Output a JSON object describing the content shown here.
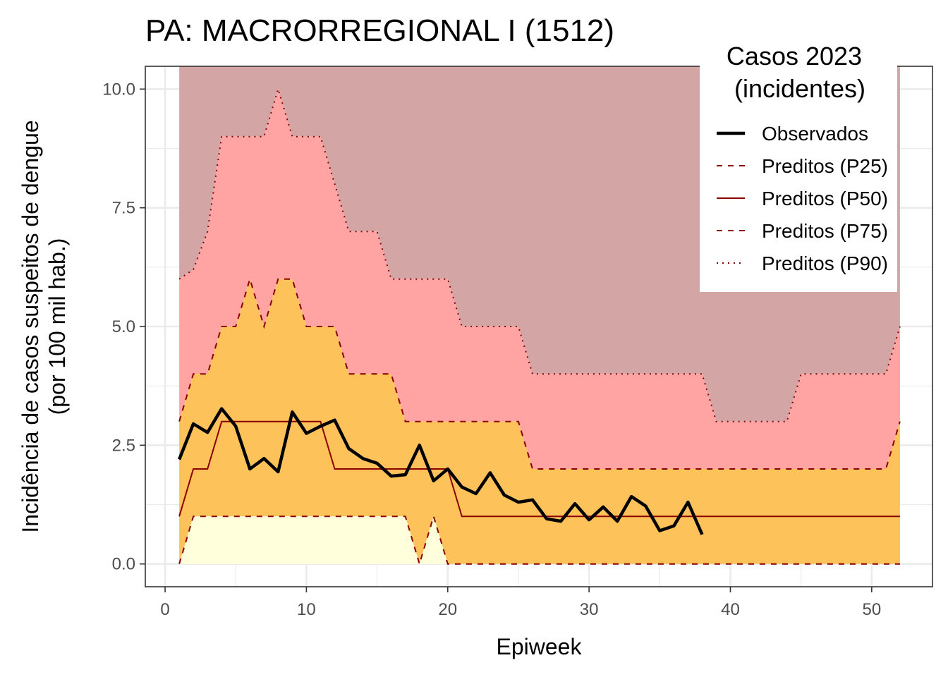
{
  "chart_data": {
    "type": "area",
    "title": "PA: MACRORREGIONAL I (1512)",
    "xlabel": "Epiweek",
    "ylabel_line1": "Incidência de casos suspeitos de dengue",
    "ylabel_line2": "(por 100 mil hab.)",
    "xlim": [
      -1.4,
      54.3
    ],
    "ylim": [
      -0.48,
      10.48
    ],
    "x_ticks": [
      0,
      10,
      20,
      30,
      40,
      50
    ],
    "x_tick_labels": [
      "0",
      "10",
      "20",
      "30",
      "40",
      "50"
    ],
    "y_ticks": [
      0,
      2.5,
      5,
      7.5,
      10
    ],
    "y_tick_labels": [
      "0.0",
      "2.5",
      "5.0",
      "7.5",
      "10.0"
    ],
    "grid": true,
    "legend_position": "top-right",
    "legend_title_line1": "Casos 2023",
    "legend_title_line2": "(incidentes)",
    "colors": {
      "band_top": "#d4a5a5",
      "band_p75_p90": "#ffa3a3",
      "band_p25_p75": "#fdc25a",
      "band_bottom": "#ffffdc",
      "predicted_line": "#8b0000",
      "observed_line": "#000000"
    },
    "x": [
      1,
      2,
      3,
      4,
      5,
      6,
      7,
      8,
      9,
      10,
      11,
      12,
      13,
      14,
      15,
      16,
      17,
      18,
      19,
      20,
      21,
      22,
      23,
      24,
      25,
      26,
      27,
      28,
      29,
      30,
      31,
      32,
      33,
      34,
      35,
      36,
      37,
      38,
      39,
      40,
      41,
      42,
      43,
      44,
      45,
      46,
      47,
      48,
      49,
      50,
      51,
      52
    ],
    "series": [
      {
        "name": "Observados",
        "x": [
          1,
          2,
          3,
          4,
          5,
          6,
          7,
          8,
          9,
          10,
          11,
          12,
          13,
          14,
          15,
          16,
          17,
          18,
          19,
          20,
          21,
          22,
          23,
          24,
          25,
          26,
          27,
          28,
          29,
          30,
          31,
          32,
          33,
          34,
          35,
          36,
          37,
          38
        ],
        "values": [
          2.2,
          2.95,
          2.77,
          3.27,
          2.9,
          2.0,
          2.22,
          1.94,
          3.2,
          2.75,
          2.9,
          3.03,
          2.43,
          2.22,
          2.12,
          1.85,
          1.88,
          2.5,
          1.75,
          2.0,
          1.62,
          1.48,
          1.92,
          1.45,
          1.3,
          1.35,
          0.95,
          0.9,
          1.27,
          0.93,
          1.2,
          0.9,
          1.42,
          1.22,
          0.7,
          0.8,
          1.3,
          0.62
        ]
      },
      {
        "name": "Preditos (P25)",
        "values": [
          0,
          1,
          1,
          1,
          1,
          1,
          1,
          1,
          1,
          1,
          1,
          1,
          1,
          1,
          1,
          1,
          1,
          0,
          1,
          0,
          0,
          0,
          0,
          0,
          0,
          0,
          0,
          0,
          0,
          0,
          0,
          0,
          0,
          0,
          0,
          0,
          0,
          0,
          0,
          0,
          0,
          0,
          0,
          0,
          0,
          0,
          0,
          0,
          0,
          0,
          0,
          0
        ]
      },
      {
        "name": "Preditos (P50)",
        "values": [
          1,
          2,
          2,
          3,
          3,
          3,
          3,
          3,
          3,
          3,
          3,
          2,
          2,
          2,
          2,
          2,
          2,
          2,
          2,
          2,
          1,
          1,
          1,
          1,
          1,
          1,
          1,
          1,
          1,
          1,
          1,
          1,
          1,
          1,
          1,
          1,
          1,
          1,
          1,
          1,
          1,
          1,
          1,
          1,
          1,
          1,
          1,
          1,
          1,
          1,
          1,
          1
        ]
      },
      {
        "name": "Preditos (P75)",
        "values": [
          3,
          4,
          4,
          5,
          5,
          6,
          5,
          6,
          6,
          5,
          5,
          5,
          4,
          4,
          4,
          4,
          3,
          3,
          3,
          3,
          3,
          3,
          3,
          3,
          3,
          2,
          2,
          2,
          2,
          2,
          2,
          2,
          2,
          2,
          2,
          2,
          2,
          2,
          2,
          2,
          2,
          2,
          2,
          2,
          2,
          2,
          2,
          2,
          2,
          2,
          2,
          3
        ]
      },
      {
        "name": "Preditos (P90)",
        "values": [
          6,
          6.2,
          7,
          9,
          9,
          9,
          9,
          10,
          9,
          9,
          9,
          8,
          7,
          7,
          7,
          6,
          6,
          6,
          6,
          6,
          5,
          5,
          5,
          5,
          5,
          4,
          4,
          4,
          4,
          4,
          4,
          4,
          4,
          4,
          4,
          4,
          4,
          4,
          3,
          3,
          3,
          3,
          3,
          3,
          4,
          4,
          4,
          4,
          4,
          4,
          4,
          5
        ]
      }
    ]
  }
}
